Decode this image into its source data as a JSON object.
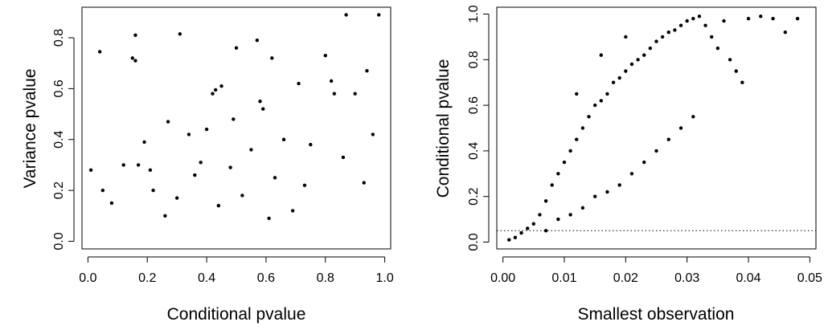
{
  "chart_data": [
    {
      "type": "scatter",
      "title": "",
      "xlabel": "Conditional pvalue",
      "ylabel": "Variance pvalue",
      "xlim": [
        -0.02,
        1.02
      ],
      "ylim": [
        -0.03,
        0.92
      ],
      "xticks": [
        0.0,
        0.2,
        0.4,
        0.6,
        0.8,
        1.0
      ],
      "xtick_labels": [
        "0.0",
        "0.2",
        "0.4",
        "0.6",
        "0.8",
        "1.0"
      ],
      "yticks": [
        0.0,
        0.2,
        0.4,
        0.6,
        0.8
      ],
      "ytick_labels": [
        "0.0",
        "0.2",
        "0.4",
        "0.6",
        "0.8"
      ],
      "grid": false,
      "series": [
        {
          "x": [
            0.87,
            0.98,
            0.16,
            0.31,
            0.57,
            0.04,
            0.15,
            0.16,
            0.5,
            0.62,
            0.8,
            0.94,
            0.82,
            0.42,
            0.43,
            0.45,
            0.83,
            0.58,
            0.71,
            0.59,
            0.9,
            0.27,
            0.49,
            0.4,
            0.21,
            0.19,
            0.34,
            0.75,
            0.12,
            0.96,
            0.66,
            0.55,
            0.48,
            0.86,
            0.17,
            0.36,
            0.38,
            0.63,
            0.22,
            0.05,
            0.93,
            0.52,
            0.73,
            0.3,
            0.08,
            0.01,
            0.69,
            0.44,
            0.26,
            0.61
          ],
          "y": [
            0.89,
            0.89,
            0.81,
            0.815,
            0.79,
            0.745,
            0.72,
            0.71,
            0.76,
            0.72,
            0.73,
            0.67,
            0.63,
            0.58,
            0.595,
            0.61,
            0.58,
            0.55,
            0.62,
            0.52,
            0.58,
            0.47,
            0.48,
            0.44,
            0.28,
            0.39,
            0.42,
            0.38,
            0.3,
            0.42,
            0.4,
            0.36,
            0.29,
            0.33,
            0.3,
            0.26,
            0.31,
            0.25,
            0.2,
            0.2,
            0.23,
            0.18,
            0.22,
            0.17,
            0.15,
            0.28,
            0.12,
            0.14,
            0.1,
            0.09
          ]
        }
      ]
    },
    {
      "type": "scatter",
      "title": "",
      "xlabel": "Smallest observation",
      "ylabel": "Conditional pvalue",
      "xlim": [
        -0.001,
        0.051
      ],
      "ylim": [
        -0.03,
        1.03
      ],
      "xticks": [
        0.0,
        0.01,
        0.02,
        0.03,
        0.04,
        0.05
      ],
      "xtick_labels": [
        "0.00",
        "0.01",
        "0.02",
        "0.03",
        "0.04",
        "0.05"
      ],
      "yticks": [
        0.0,
        0.2,
        0.4,
        0.6,
        0.8,
        1.0
      ],
      "ytick_labels": [
        "0.0",
        "0.2",
        "0.4",
        "0.6",
        "0.8",
        "1.0"
      ],
      "grid": false,
      "reference_line_y": 0.05,
      "series": [
        {
          "x": [
            0.001,
            0.002,
            0.003,
            0.004,
            0.005,
            0.006,
            0.007,
            0.008,
            0.009,
            0.01,
            0.011,
            0.012,
            0.013,
            0.014,
            0.015,
            0.016,
            0.017,
            0.018,
            0.019,
            0.02,
            0.021,
            0.022,
            0.023,
            0.024,
            0.025,
            0.026,
            0.027,
            0.028,
            0.029,
            0.03,
            0.031,
            0.032,
            0.033,
            0.034,
            0.035,
            0.036,
            0.037,
            0.038,
            0.039,
            0.04,
            0.042,
            0.044,
            0.046,
            0.048,
            0.007,
            0.009,
            0.011,
            0.013,
            0.015,
            0.017,
            0.019,
            0.021,
            0.023,
            0.025,
            0.027,
            0.029,
            0.031,
            0.012,
            0.016,
            0.02
          ],
          "y": [
            0.01,
            0.02,
            0.04,
            0.06,
            0.08,
            0.12,
            0.18,
            0.25,
            0.3,
            0.35,
            0.4,
            0.45,
            0.5,
            0.55,
            0.6,
            0.62,
            0.65,
            0.7,
            0.72,
            0.75,
            0.78,
            0.8,
            0.82,
            0.85,
            0.88,
            0.9,
            0.92,
            0.93,
            0.95,
            0.97,
            0.98,
            0.99,
            0.95,
            0.9,
            0.85,
            0.97,
            0.8,
            0.75,
            0.7,
            0.98,
            0.99,
            0.98,
            0.92,
            0.98,
            0.05,
            0.1,
            0.12,
            0.15,
            0.2,
            0.22,
            0.25,
            0.3,
            0.35,
            0.4,
            0.45,
            0.5,
            0.55,
            0.65,
            0.82,
            0.9
          ]
        }
      ]
    }
  ]
}
